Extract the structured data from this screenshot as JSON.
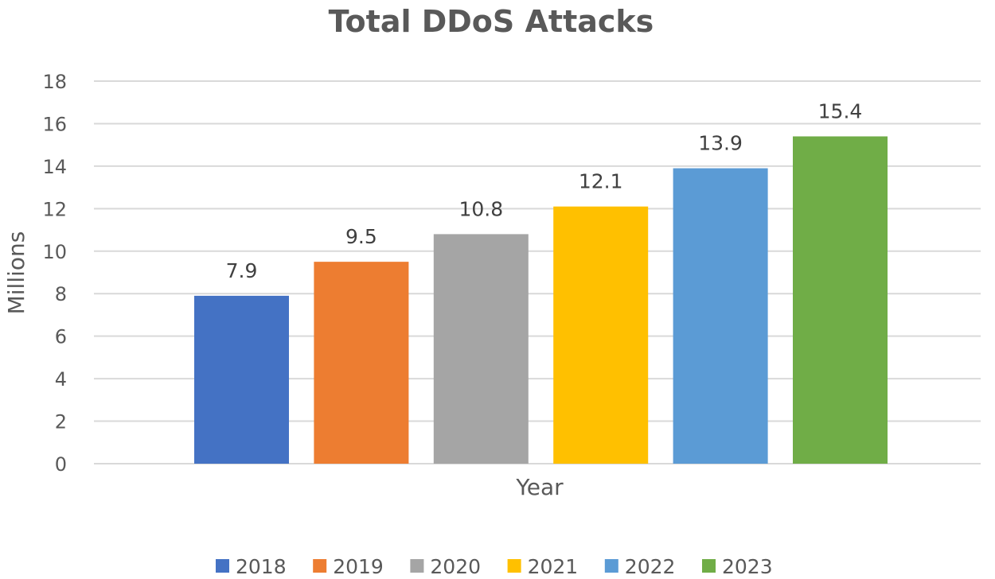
{
  "chart_data": {
    "type": "bar",
    "title": "Total DDoS Attacks",
    "xlabel": "Year",
    "ylabel": "Millions",
    "ylim": [
      0,
      18
    ],
    "ytick_step": 2,
    "yticks": [
      "0",
      "2",
      "4",
      "6",
      "8",
      "10",
      "12",
      "14",
      "16",
      "18"
    ],
    "grid": true,
    "legend_position": "bottom",
    "categories": [
      "2018",
      "2019",
      "2020",
      "2021",
      "2022",
      "2023"
    ],
    "values": [
      7.9,
      9.5,
      10.8,
      12.1,
      13.9,
      15.4
    ],
    "data_labels": [
      "7.9",
      "9.5",
      "10.8",
      "12.1",
      "13.9",
      "15.4"
    ],
    "colors": [
      "#4472c4",
      "#ed7d31",
      "#a5a5a5",
      "#ffc000",
      "#5b9bd5",
      "#70ad47"
    ]
  }
}
